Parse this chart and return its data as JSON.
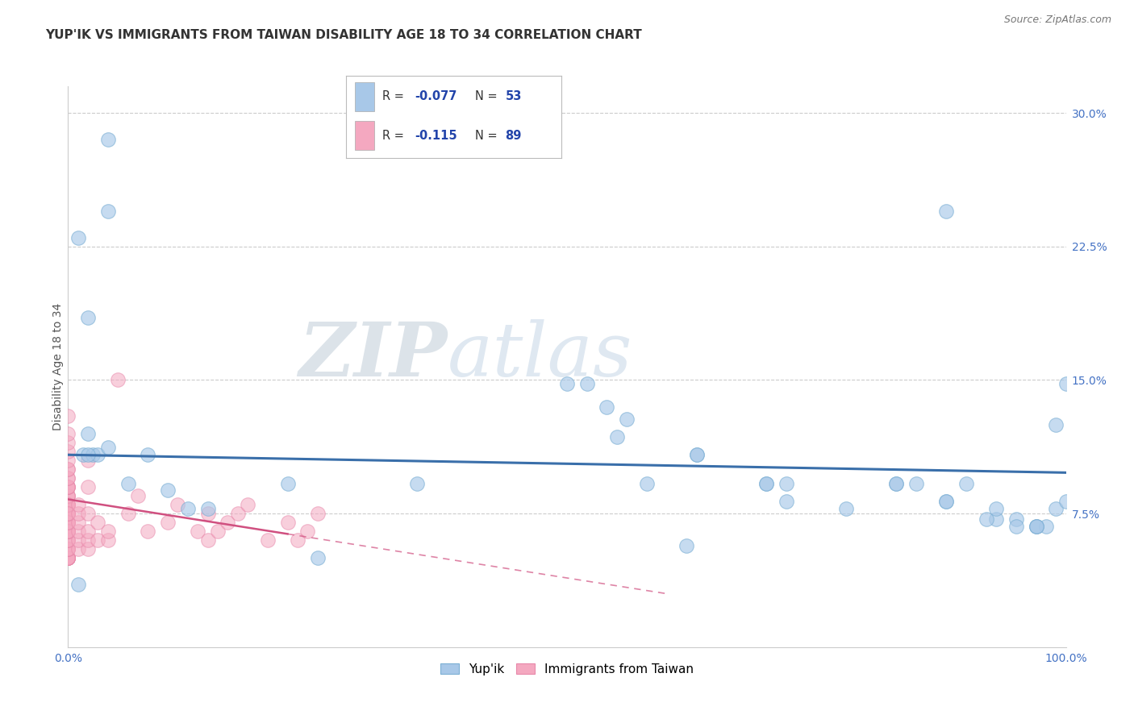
{
  "title": "YUP'IK VS IMMIGRANTS FROM TAIWAN DISABILITY AGE 18 TO 34 CORRELATION CHART",
  "source": "Source: ZipAtlas.com",
  "ylabel_label": "Disability Age 18 to 34",
  "xlim": [
    0.0,
    1.0
  ],
  "ylim": [
    0.0,
    0.315
  ],
  "watermark_zip": "ZIP",
  "watermark_atlas": "atlas",
  "legend_r1": "R = ",
  "legend_v1": "-0.077",
  "legend_n1_label": "N = ",
  "legend_n1": "53",
  "legend_r2": "R = ",
  "legend_v2": "-0.115",
  "legend_n2_label": "N = ",
  "legend_n2": "89",
  "blue_color": "#a8c8e8",
  "blue_edge_color": "#7bafd4",
  "pink_color": "#f4a8c0",
  "pink_edge_color": "#e888aa",
  "blue_line_color": "#3a6faa",
  "pink_line_color": "#d05080",
  "background_color": "#ffffff",
  "grid_color": "#cccccc",
  "tick_color": "#4472c4",
  "title_color": "#333333",
  "source_color": "#777777",
  "ylabel_color": "#555555",
  "blue_scatter_x": [
    0.04,
    0.04,
    0.01,
    0.02,
    0.02,
    0.015,
    0.025,
    0.03,
    0.01,
    0.5,
    0.52,
    0.54,
    0.56,
    0.63,
    0.7,
    0.72,
    0.83,
    0.85,
    0.88,
    0.9,
    0.93,
    0.95,
    0.97,
    0.98,
    0.99,
    1.0,
    0.02,
    0.04,
    0.06,
    0.08,
    0.1,
    0.12,
    0.14,
    0.22,
    0.25,
    0.35,
    0.55,
    0.58,
    0.62,
    0.72,
    0.78,
    0.83,
    0.88,
    0.92,
    0.95,
    0.97,
    0.63,
    0.7,
    0.88,
    0.93,
    0.97,
    0.99,
    1.0
  ],
  "blue_scatter_y": [
    0.285,
    0.245,
    0.23,
    0.185,
    0.12,
    0.108,
    0.108,
    0.108,
    0.035,
    0.148,
    0.148,
    0.135,
    0.128,
    0.108,
    0.092,
    0.092,
    0.092,
    0.092,
    0.245,
    0.092,
    0.072,
    0.072,
    0.068,
    0.068,
    0.078,
    0.148,
    0.108,
    0.112,
    0.092,
    0.108,
    0.088,
    0.078,
    0.078,
    0.092,
    0.05,
    0.092,
    0.118,
    0.092,
    0.057,
    0.082,
    0.078,
    0.092,
    0.082,
    0.072,
    0.068,
    0.068,
    0.108,
    0.092,
    0.082,
    0.078,
    0.068,
    0.125,
    0.082
  ],
  "pink_scatter_x": [
    0.0,
    0.0,
    0.0,
    0.0,
    0.0,
    0.0,
    0.0,
    0.0,
    0.0,
    0.0,
    0.0,
    0.0,
    0.0,
    0.0,
    0.0,
    0.0,
    0.0,
    0.0,
    0.0,
    0.0,
    0.0,
    0.0,
    0.0,
    0.0,
    0.0,
    0.0,
    0.0,
    0.0,
    0.0,
    0.0,
    0.0,
    0.0,
    0.0,
    0.0,
    0.0,
    0.0,
    0.0,
    0.0,
    0.0,
    0.0,
    0.0,
    0.0,
    0.0,
    0.0,
    0.0,
    0.0,
    0.0,
    0.0,
    0.0,
    0.0,
    0.0,
    0.0,
    0.0,
    0.0,
    0.0,
    0.01,
    0.01,
    0.01,
    0.01,
    0.01,
    0.01,
    0.02,
    0.02,
    0.02,
    0.02,
    0.02,
    0.02,
    0.03,
    0.03,
    0.04,
    0.04,
    0.05,
    0.06,
    0.07,
    0.08,
    0.1,
    0.11,
    0.13,
    0.14,
    0.14,
    0.15,
    0.16,
    0.17,
    0.18,
    0.2,
    0.22,
    0.23,
    0.24,
    0.25
  ],
  "pink_scatter_y": [
    0.05,
    0.05,
    0.05,
    0.05,
    0.05,
    0.05,
    0.05,
    0.05,
    0.05,
    0.05,
    0.055,
    0.055,
    0.055,
    0.055,
    0.06,
    0.06,
    0.06,
    0.065,
    0.065,
    0.065,
    0.07,
    0.07,
    0.07,
    0.075,
    0.075,
    0.075,
    0.075,
    0.08,
    0.08,
    0.08,
    0.08,
    0.085,
    0.085,
    0.085,
    0.09,
    0.09,
    0.09,
    0.09,
    0.095,
    0.095,
    0.1,
    0.1,
    0.105,
    0.11,
    0.115,
    0.12,
    0.13,
    0.065,
    0.065,
    0.065,
    0.07,
    0.07,
    0.075,
    0.08,
    0.075,
    0.055,
    0.06,
    0.065,
    0.07,
    0.075,
    0.08,
    0.055,
    0.06,
    0.065,
    0.075,
    0.09,
    0.105,
    0.06,
    0.07,
    0.06,
    0.065,
    0.15,
    0.075,
    0.085,
    0.065,
    0.07,
    0.08,
    0.065,
    0.06,
    0.075,
    0.065,
    0.07,
    0.075,
    0.08,
    0.06,
    0.07,
    0.06,
    0.065,
    0.075
  ],
  "blue_line_x0": 0.0,
  "blue_line_x1": 1.0,
  "blue_line_y0": 0.108,
  "blue_line_y1": 0.098,
  "pink_line_solid_x0": 0.0,
  "pink_line_solid_x1": 0.22,
  "pink_line_dashed_x0": 0.22,
  "pink_line_dashed_x1": 0.6,
  "pink_line_y0": 0.083,
  "pink_line_y1_solid": 0.071,
  "pink_line_y1_dashed_end": 0.03,
  "yticks": [
    0.075,
    0.15,
    0.225,
    0.3
  ],
  "ytick_labels": [
    "7.5%",
    "15.0%",
    "22.5%",
    "30.0%"
  ],
  "xtick_positions": [
    0.0,
    1.0
  ],
  "xtick_labels": [
    "0.0%",
    "100.0%"
  ],
  "title_fontsize": 11,
  "source_fontsize": 9,
  "tick_fontsize": 10,
  "ylabel_fontsize": 10,
  "legend_fontsize": 11
}
